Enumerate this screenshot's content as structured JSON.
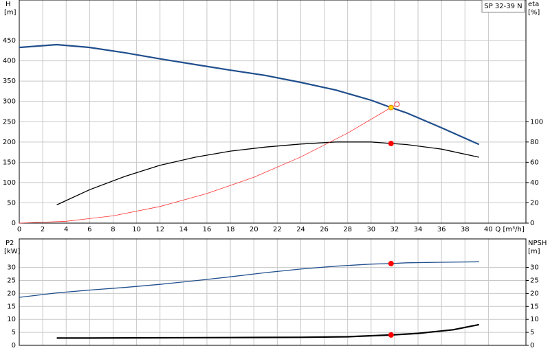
{
  "chart_data": [
    {
      "type": "line",
      "title": "SP 32-39 N",
      "ylabel": "H",
      "yunit": "[m]",
      "y2label": "eta",
      "y2unit": "[%]",
      "xlabel": "Q [m³/h]",
      "xlim": [
        0,
        43.2
      ],
      "xticks": [
        0,
        2,
        4,
        6,
        8,
        10,
        12,
        14,
        16,
        18,
        20,
        22,
        24,
        26,
        28,
        30,
        32,
        34,
        36,
        38,
        40
      ],
      "ylim": [
        0,
        550
      ],
      "yticks": [
        0,
        50,
        100,
        150,
        200,
        250,
        300,
        350,
        400,
        450
      ],
      "y2lim": [
        0,
        220
      ],
      "y2ticks": [
        0,
        20,
        40,
        60,
        80,
        100
      ],
      "grid": true,
      "series": [
        {
          "color": "#1f4e8c",
          "width": 2.2,
          "x": [
            0,
            3.2,
            6,
            9,
            12,
            15,
            18,
            21,
            24,
            27,
            30,
            31.7,
            33,
            36,
            39.2
          ],
          "values": [
            433,
            440,
            433,
            420,
            405,
            391,
            377,
            364,
            347,
            328,
            303,
            285,
            272,
            235,
            194
          ]
        },
        {
          "color": "#000000",
          "width": 1.3,
          "axis": "y2",
          "x": [
            3.2,
            6,
            9,
            12,
            15,
            18,
            21,
            24,
            27,
            30,
            31.7,
            33,
            36,
            39.2
          ],
          "values": [
            18,
            33,
            46,
            57,
            65,
            71,
            75,
            78,
            80,
            80,
            78.5,
            77.5,
            73,
            65
          ]
        },
        {
          "color": "#ff3030",
          "width": 0.8,
          "x": [
            0,
            4,
            8,
            12,
            16,
            20,
            24,
            28,
            31.7,
            32.2
          ],
          "values": [
            0,
            4.5,
            18,
            41,
            73,
            113,
            163,
            222,
            285,
            293
          ]
        }
      ],
      "points": [
        {
          "x": 31.7,
          "y": 285,
          "color": "#ffd700",
          "edge": "#e08000"
        },
        {
          "x": 31.7,
          "y": 78.5,
          "axis": "y2",
          "color": "#ff0000",
          "edge": "#ff0000"
        },
        {
          "x": 32.2,
          "y": 293,
          "color": "#ffffff",
          "edge": "#ff3030"
        }
      ]
    },
    {
      "type": "line",
      "ylabel": "P2",
      "yunit": "[kW]",
      "y2label": "NPSH",
      "y2unit": "[m]",
      "xlim": [
        0,
        43.2
      ],
      "xticks": [
        0,
        2,
        4,
        6,
        8,
        10,
        12,
        14,
        16,
        18,
        20,
        22,
        24,
        26,
        28,
        30,
        32,
        34,
        36,
        38,
        40
      ],
      "ylim": [
        0,
        41
      ],
      "yticks": [
        0,
        5,
        10,
        15,
        20,
        25,
        30
      ],
      "y2lim": [
        0,
        41
      ],
      "y2ticks": [
        0,
        5,
        10,
        15,
        20,
        25,
        30
      ],
      "grid": true,
      "series": [
        {
          "color": "#1f4e8c",
          "width": 1.3,
          "x": [
            0,
            3.2,
            6,
            9,
            12,
            15,
            18,
            21,
            24,
            27,
            30,
            31.7,
            33,
            36,
            39.2
          ],
          "values": [
            18.5,
            20.2,
            21.3,
            22.3,
            23.5,
            24.9,
            26.4,
            28,
            29.4,
            30.5,
            31.3,
            31.5,
            31.8,
            32,
            32.2
          ]
        },
        {
          "color": "#000000",
          "width": 2.2,
          "axis": "y2",
          "x": [
            3.2,
            6,
            12,
            18,
            24,
            28,
            31.7,
            34,
            37,
            39.2
          ],
          "values": [
            2.8,
            2.8,
            2.9,
            3,
            3.1,
            3.3,
            4,
            4.6,
            6,
            8
          ]
        }
      ],
      "points": [
        {
          "x": 31.7,
          "y": 31.5,
          "color": "#ff0000",
          "edge": "#ff0000"
        },
        {
          "x": 31.7,
          "y": 4,
          "axis": "y2",
          "color": "#ff0000",
          "edge": "#ff0000"
        }
      ]
    }
  ]
}
